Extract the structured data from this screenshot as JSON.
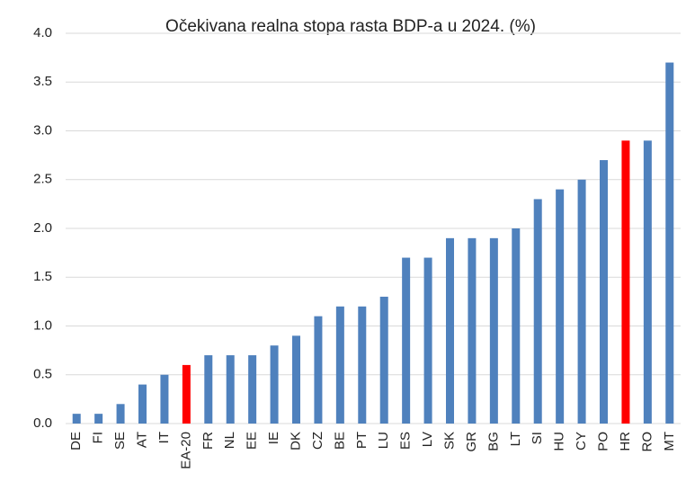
{
  "chart_data": {
    "type": "bar",
    "title": "Očekivana realna stopa rasta BDP-a  u 2024. (%)",
    "categories": [
      "DE",
      "FI",
      "SE",
      "AT",
      "IT",
      "EA-20",
      "FR",
      "NL",
      "EE",
      "IE",
      "DK",
      "CZ",
      "BE",
      "PT",
      "LU",
      "ES",
      "LV",
      "SK",
      "GR",
      "BG",
      "LT",
      "SI",
      "HU",
      "CY",
      "PO",
      "HR",
      "RO",
      "MT"
    ],
    "values": [
      0.1,
      0.1,
      0.2,
      0.4,
      0.5,
      0.6,
      0.7,
      0.7,
      0.7,
      0.8,
      0.9,
      1.1,
      1.2,
      1.2,
      1.3,
      1.7,
      1.7,
      1.9,
      1.9,
      1.9,
      2.0,
      2.3,
      2.4,
      2.5,
      2.7,
      2.9,
      2.9,
      3.7
    ],
    "colors": [
      "#4f81bd",
      "#4f81bd",
      "#4f81bd",
      "#4f81bd",
      "#4f81bd",
      "#ff0000",
      "#4f81bd",
      "#4f81bd",
      "#4f81bd",
      "#4f81bd",
      "#4f81bd",
      "#4f81bd",
      "#4f81bd",
      "#4f81bd",
      "#4f81bd",
      "#4f81bd",
      "#4f81bd",
      "#4f81bd",
      "#4f81bd",
      "#4f81bd",
      "#4f81bd",
      "#4f81bd",
      "#4f81bd",
      "#4f81bd",
      "#4f81bd",
      "#ff0000",
      "#4f81bd",
      "#4f81bd"
    ],
    "ylim": [
      0,
      4
    ],
    "yticks": [
      {
        "value": 0,
        "label": "0.0"
      },
      0.5,
      {
        "value": 1,
        "label": "1.0"
      },
      1.5,
      {
        "value": 2,
        "label": "2.0"
      },
      2.5,
      {
        "value": 3,
        "label": "3.0"
      },
      3.5,
      {
        "value": 4,
        "label": "4.0"
      }
    ],
    "grid": true
  }
}
